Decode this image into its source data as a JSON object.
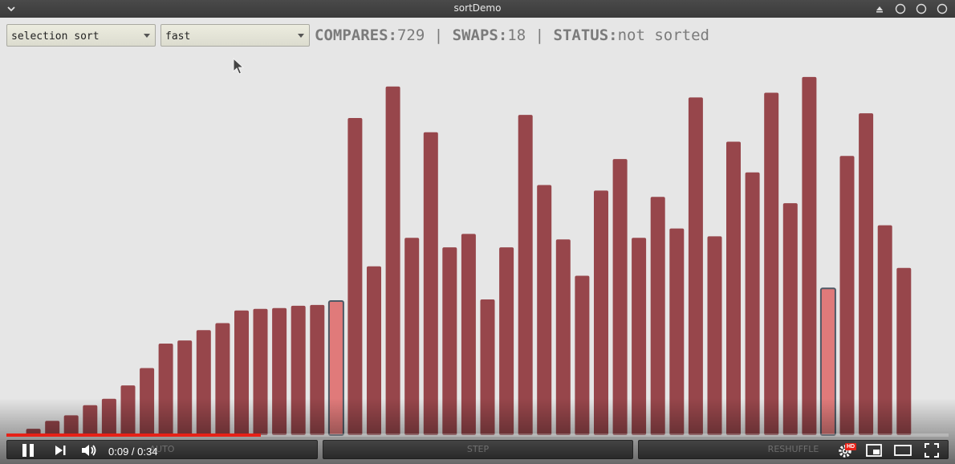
{
  "window": {
    "title": "sortDemo",
    "controls": [
      "menu-chevron-icon",
      "maximize-icon",
      "circle-icon",
      "circle-icon",
      "circle-icon"
    ]
  },
  "toolbar": {
    "algorithm": {
      "selected": "selection sort"
    },
    "speed": {
      "selected": "fast"
    }
  },
  "stats": {
    "compares_label": "COMPARES:",
    "compares_value": "729",
    "separator": "|",
    "swaps_label": "SWAPS:",
    "swaps_value": "18",
    "status_label": "STATUS:",
    "status_value": "not sorted"
  },
  "chart_data": {
    "type": "bar",
    "title": "",
    "max": 460,
    "values": [
      2,
      8,
      18,
      25,
      38,
      46,
      63,
      85,
      116,
      120,
      133,
      142,
      158,
      160,
      161,
      164,
      165,
      170,
      402,
      214,
      442,
      250,
      384,
      238,
      255,
      172,
      238,
      406,
      317,
      248,
      202,
      310,
      350,
      250,
      302,
      262,
      428,
      252,
      372,
      333,
      434,
      294,
      454,
      186,
      354,
      408,
      266,
      212
    ],
    "highlight_indices": [
      17,
      43
    ],
    "colors": {
      "bar": "#97464b",
      "highlight": "#e07a7a",
      "highlight_border": "#4e5865"
    }
  },
  "buttons": {
    "auto": "AUTO",
    "step": "STEP",
    "reshuffle": "RESHUFFLE"
  },
  "player": {
    "time_current": "0:09",
    "time_sep": " / ",
    "time_total": "0:34",
    "time_display": "0:09 / 0:34",
    "progress": 0.27,
    "hd_label": "HD",
    "accent": "#e62117"
  }
}
